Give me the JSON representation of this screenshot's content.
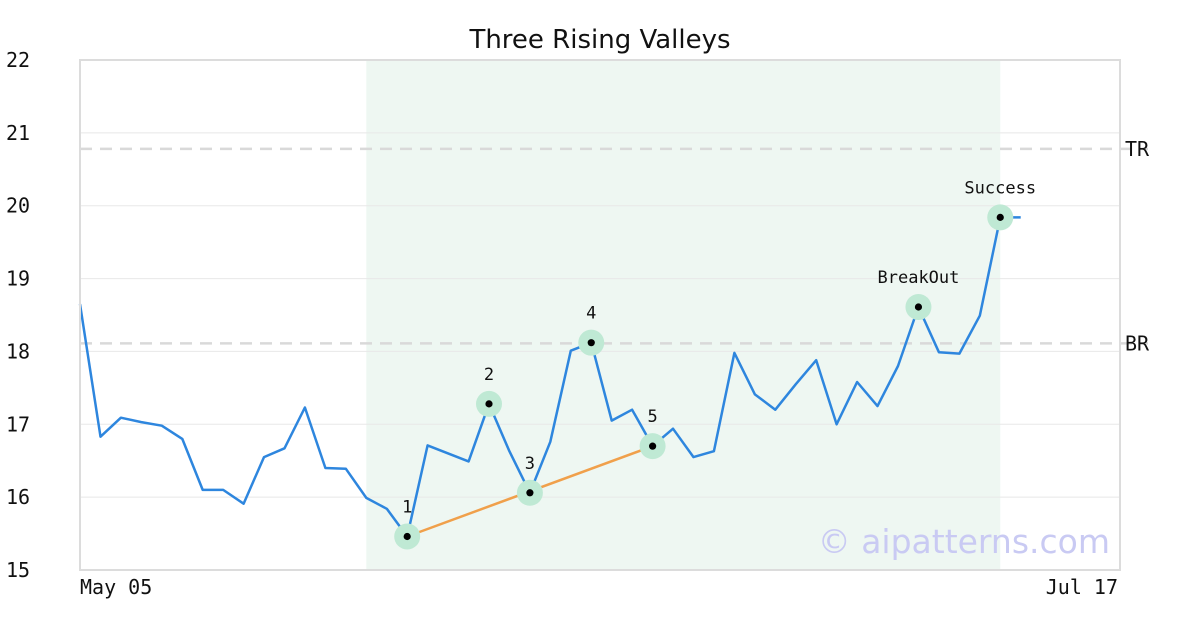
{
  "chart_data": {
    "type": "line",
    "title": "Three Rising Valleys",
    "xlabel": "",
    "ylabel": "",
    "ylim": [
      15,
      22
    ],
    "yticks": [
      15,
      16,
      17,
      18,
      19,
      20,
      21,
      22
    ],
    "xticks": [
      "May 05",
      "Jul 17"
    ],
    "grid": "horizontal",
    "watermark": "© aipatterns.com",
    "series": [
      {
        "color": "#2e86de",
        "values": [
          18.65,
          16.83,
          17.09,
          17.03,
          16.98,
          16.8,
          16.1,
          16.1,
          15.91,
          16.55,
          16.67,
          17.23,
          16.4,
          16.39,
          15.99,
          15.84,
          15.46,
          16.71,
          16.6,
          16.49,
          17.28,
          16.63,
          16.06,
          16.76,
          18.01,
          18.12,
          17.05,
          17.2,
          16.7,
          16.94,
          16.55,
          16.63,
          17.98,
          17.41,
          17.2,
          17.55,
          17.88,
          17.0,
          17.58,
          17.25,
          17.8,
          18.61,
          17.99,
          17.97,
          18.49,
          19.84,
          19.84
        ]
      }
    ],
    "highlight_region": {
      "start_index": 14,
      "end_index": 45,
      "color": "#eef7f2"
    },
    "reference_lines": [
      {
        "label": "TR",
        "value": 20.78,
        "color": "#d9d9d9"
      },
      {
        "label": "BR",
        "value": 18.11,
        "color": "#d9d9d9"
      }
    ],
    "trend_line": {
      "from_index": 16,
      "to_index": 28,
      "from_value": 15.46,
      "to_value": 16.7,
      "color": "#f0a04b"
    },
    "markers": [
      {
        "label": "1",
        "index": 16,
        "value": 15.46
      },
      {
        "label": "2",
        "index": 20,
        "value": 17.28
      },
      {
        "label": "3",
        "index": 22,
        "value": 16.06
      },
      {
        "label": "4",
        "index": 25,
        "value": 18.12
      },
      {
        "label": "5",
        "index": 28,
        "value": 16.7
      },
      {
        "label": "BreakOut",
        "index": 41,
        "value": 18.61
      },
      {
        "label": "Success",
        "index": 45,
        "value": 19.84
      }
    ],
    "marker_style": {
      "ring_color": "#bfe9d4",
      "dot_color": "#000000"
    }
  }
}
